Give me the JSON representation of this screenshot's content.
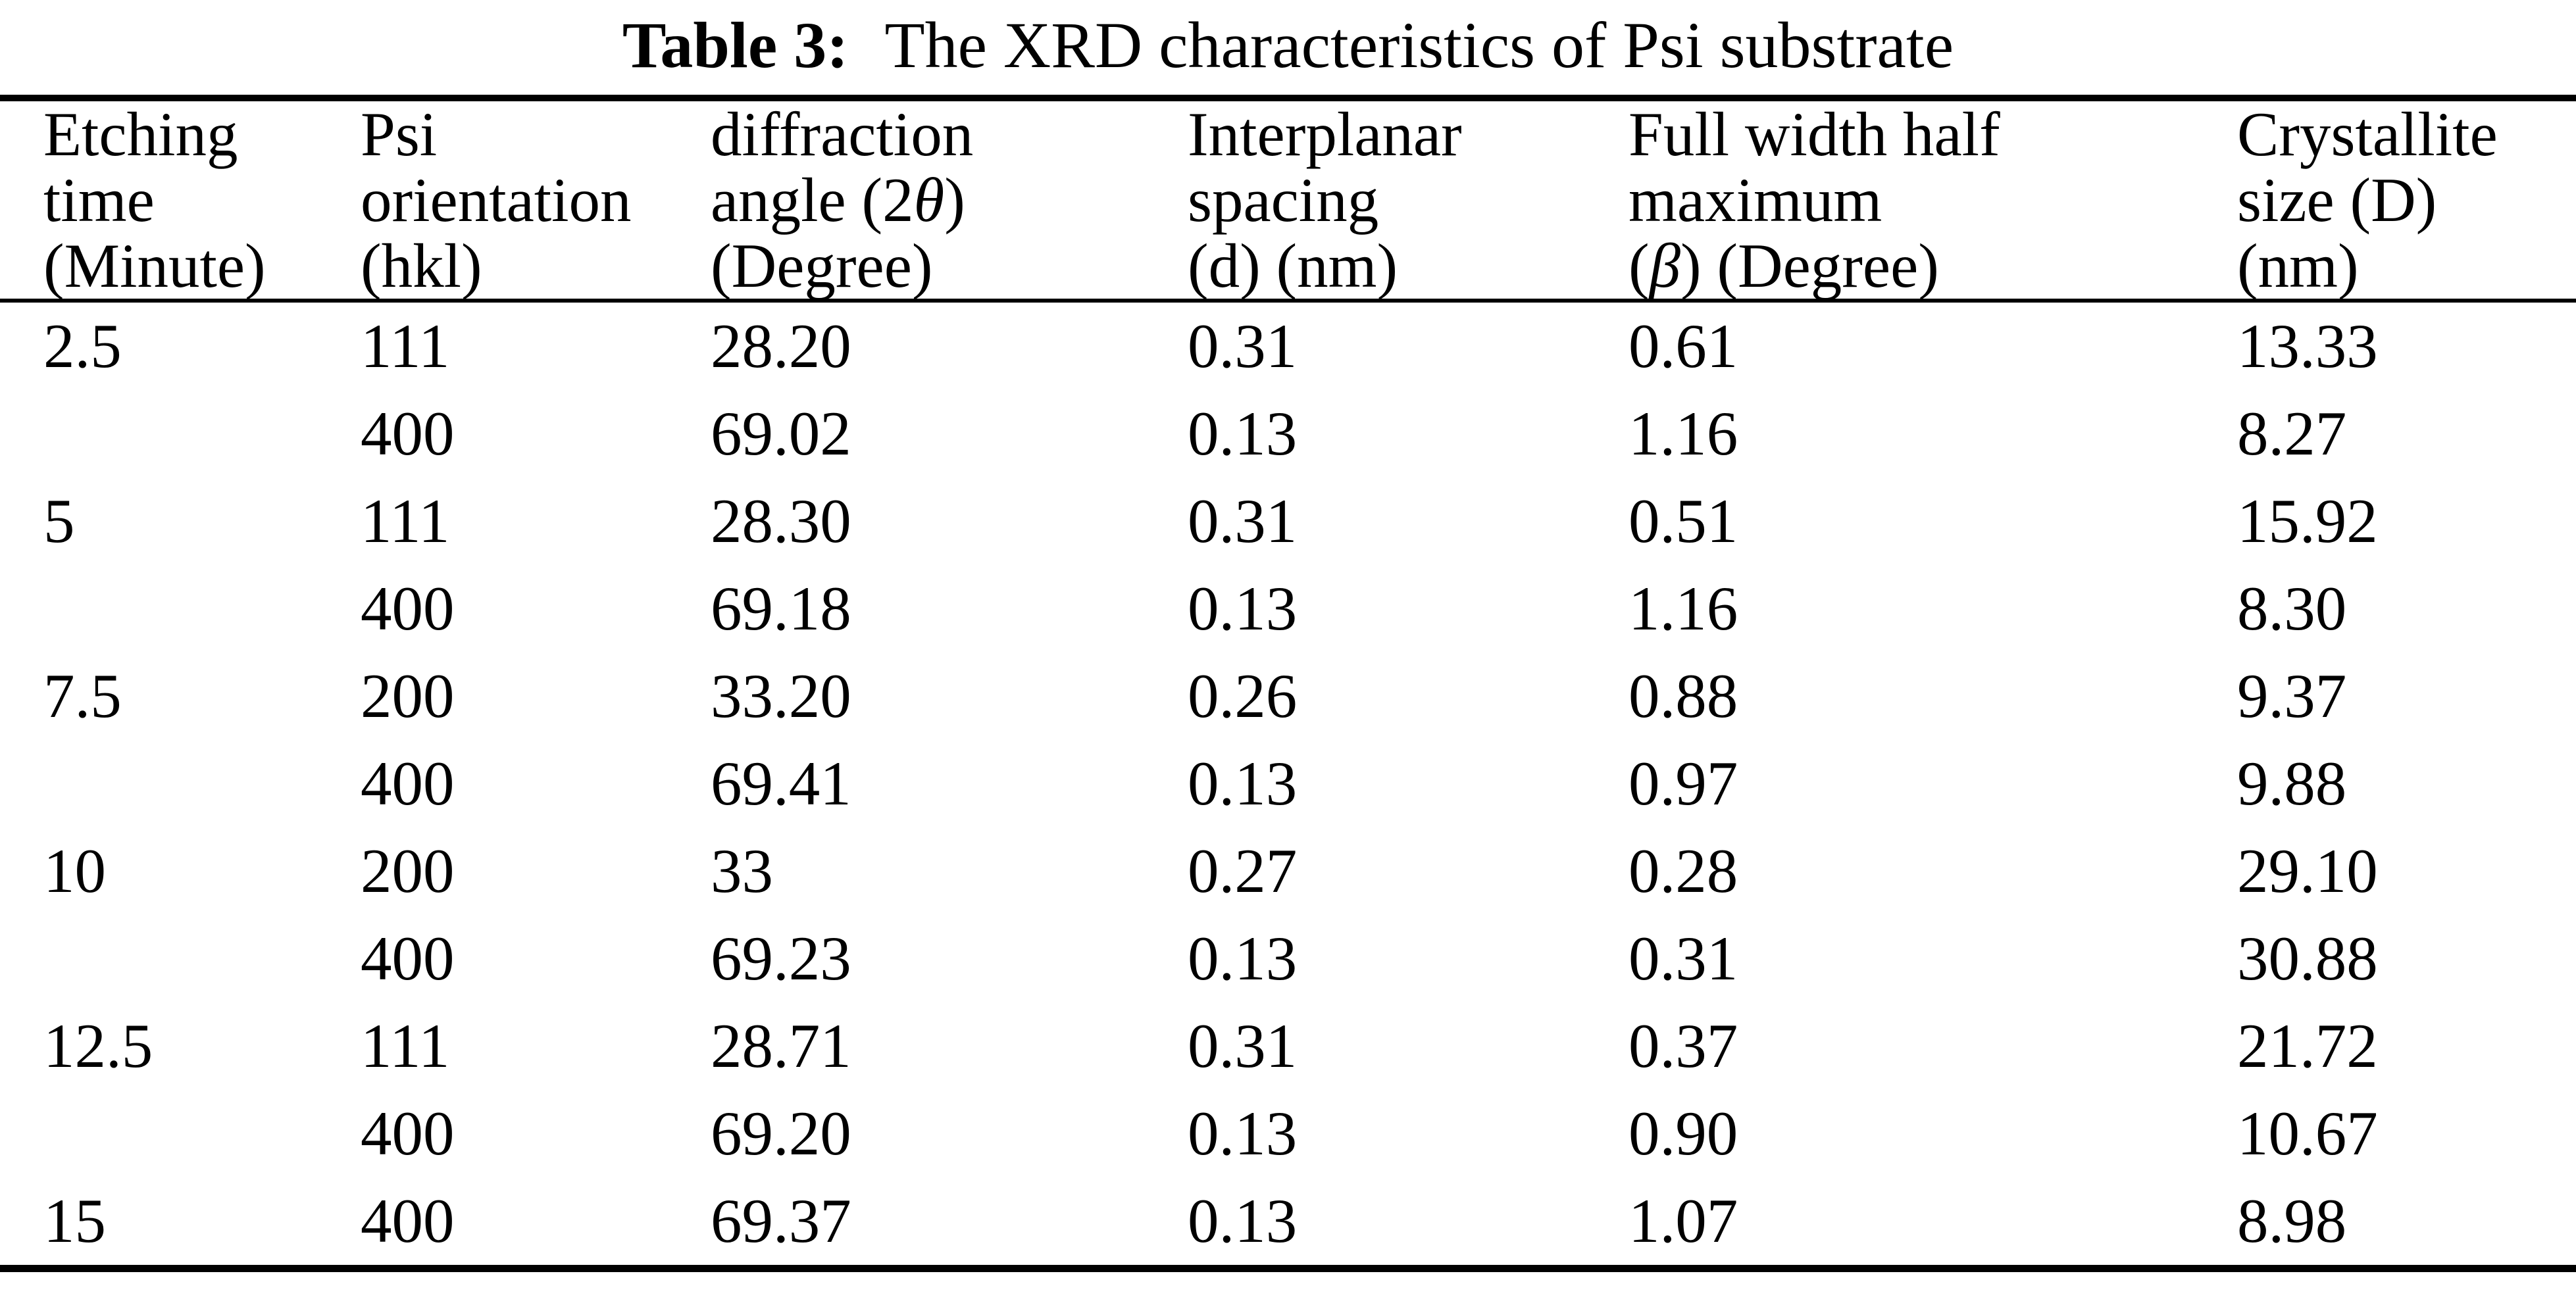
{
  "caption": {
    "label": "Table 3:",
    "text": "The XRD characteristics of Psi substrate"
  },
  "header": {
    "columns": [
      {
        "l1": "Etching",
        "l2": "time",
        "l3": "(Minute)"
      },
      {
        "l1": "Psi",
        "l2": "orientation",
        "l3": "(hkl)"
      },
      {
        "l1": "diffraction",
        "l2_pre": "angle (2",
        "l2_sym": "θ",
        "l2_post": ")",
        "l3": "(Degree)"
      },
      {
        "l1": "Interplanar",
        "l2": "spacing",
        "l3": "(d) (nm)"
      },
      {
        "l1": "Full width half",
        "l2": "maximum",
        "l3_pre": "(",
        "l3_sym": "β",
        "l3_post": ") (Degree)"
      },
      {
        "l1": "Crystallite",
        "l2": "size (D)",
        "l3": "(nm)"
      }
    ]
  },
  "rows": [
    [
      "2.5",
      "111",
      "28.20",
      "0.31",
      "0.61",
      "13.33"
    ],
    [
      "",
      "400",
      "69.02",
      "0.13",
      "1.16",
      "8.27"
    ],
    [
      "5",
      "111",
      "28.30",
      "0.31",
      "0.51",
      "15.92"
    ],
    [
      "",
      "400",
      "69.18",
      "0.13",
      "1.16",
      "8.30"
    ],
    [
      "7.5",
      "200",
      "33.20",
      "0.26",
      "0.88",
      "9.37"
    ],
    [
      "",
      "400",
      "69.41",
      "0.13",
      "0.97",
      "9.88"
    ],
    [
      "10",
      "200",
      "33",
      "0.27",
      "0.28",
      "29.10"
    ],
    [
      "",
      "400",
      "69.23",
      "0.13",
      "0.31",
      "30.88"
    ],
    [
      "12.5",
      "111",
      "28.71",
      "0.31",
      "0.37",
      "21.72"
    ],
    [
      "",
      "400",
      "69.20",
      "0.13",
      "0.90",
      "10.67"
    ],
    [
      "15",
      "400",
      "69.37",
      "0.13",
      "1.07",
      "8.98"
    ]
  ],
  "colors": {
    "text": "#000000",
    "background": "#ffffff",
    "rule": "#000000"
  }
}
